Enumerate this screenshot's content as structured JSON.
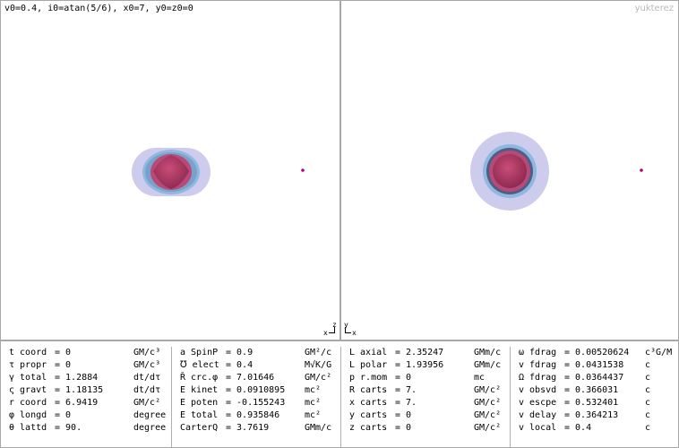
{
  "header": {
    "params": "v0=0.4, i0=atan(5/6), x0=7, y0=z0=0",
    "watermark": "yukterez"
  },
  "axes": {
    "left": {
      "vertical": "z",
      "horizontal": "x"
    },
    "right": {
      "vertical": "y",
      "horizontal": "x"
    }
  },
  "colors": {
    "halo": "#c9c6ea",
    "ergosphere": "#8fb8e0",
    "horizon": "#b83a65",
    "particle": "#b0007a",
    "divider": "#a8a8a8"
  },
  "columns": [
    {
      "rows": [
        {
          "label": "t coord",
          "value": "= 0",
          "unit": "GM/c³"
        },
        {
          "label": "τ propr",
          "value": "= 0",
          "unit": "GM/c³"
        },
        {
          "label": "γ total",
          "value": "= 1.2884",
          "unit": "dt/dτ"
        },
        {
          "label": "ς gravt",
          "value": "= 1.18135",
          "unit": "dt/dτ"
        },
        {
          "label": "r coord",
          "value": "= 6.9419",
          "unit": "GM/c²"
        },
        {
          "label": "φ longd",
          "value": "= 0",
          "unit": "degree"
        },
        {
          "label": "θ lattd",
          "value": "= 90.",
          "unit": "degree"
        }
      ]
    },
    {
      "rows": [
        {
          "label": "a SpinP",
          "value": "= 0.9",
          "unit": "GM²/c"
        },
        {
          "label": "℧ elect",
          "value": "= 0.4",
          "unit": "M√K/G"
        },
        {
          "label": "Ř crc.φ",
          "value": "= 7.01646",
          "unit": "GM/c²"
        },
        {
          "label": "E kinet",
          "value": "= 0.0910895",
          "unit": "mc²"
        },
        {
          "label": "E poten",
          "value": "= -0.155243",
          "unit": "mc²"
        },
        {
          "label": "E total",
          "value": "= 0.935846",
          "unit": "mc²"
        },
        {
          "label": "CarterQ",
          "value": "= 3.7619",
          "unit": "GMm/c"
        }
      ]
    },
    {
      "rows": [
        {
          "label": "L axial",
          "value": "= 2.35247",
          "unit": "GMm/c"
        },
        {
          "label": "L polar",
          "value": "= 1.93956",
          "unit": "GMm/c"
        },
        {
          "label": "p r.mom",
          "value": "= 0",
          "unit": "mc"
        },
        {
          "label": "R carts",
          "value": "= 7.",
          "unit": "GM/c²"
        },
        {
          "label": "x carts",
          "value": "= 7.",
          "unit": "GM/c²"
        },
        {
          "label": "y carts",
          "value": "= 0",
          "unit": "GM/c²"
        },
        {
          "label": "z carts",
          "value": "= 0",
          "unit": "GM/c²"
        }
      ]
    },
    {
      "rows": [
        {
          "label": "ω fdrag",
          "value": "= 0.00520624",
          "unit": "c³G/M"
        },
        {
          "label": "v fdrag",
          "value": "= 0.0431538",
          "unit": "c"
        },
        {
          "label": "Ω fdrag",
          "value": "= 0.0364437",
          "unit": "c"
        },
        {
          "label": "v obsvd",
          "value": "= 0.366031",
          "unit": "c"
        },
        {
          "label": "v escpe",
          "value": "= 0.532401",
          "unit": "c"
        },
        {
          "label": "v delay",
          "value": "= 0.364213",
          "unit": "c"
        },
        {
          "label": "v local",
          "value": "= 0.4",
          "unit": "c"
        }
      ]
    }
  ]
}
